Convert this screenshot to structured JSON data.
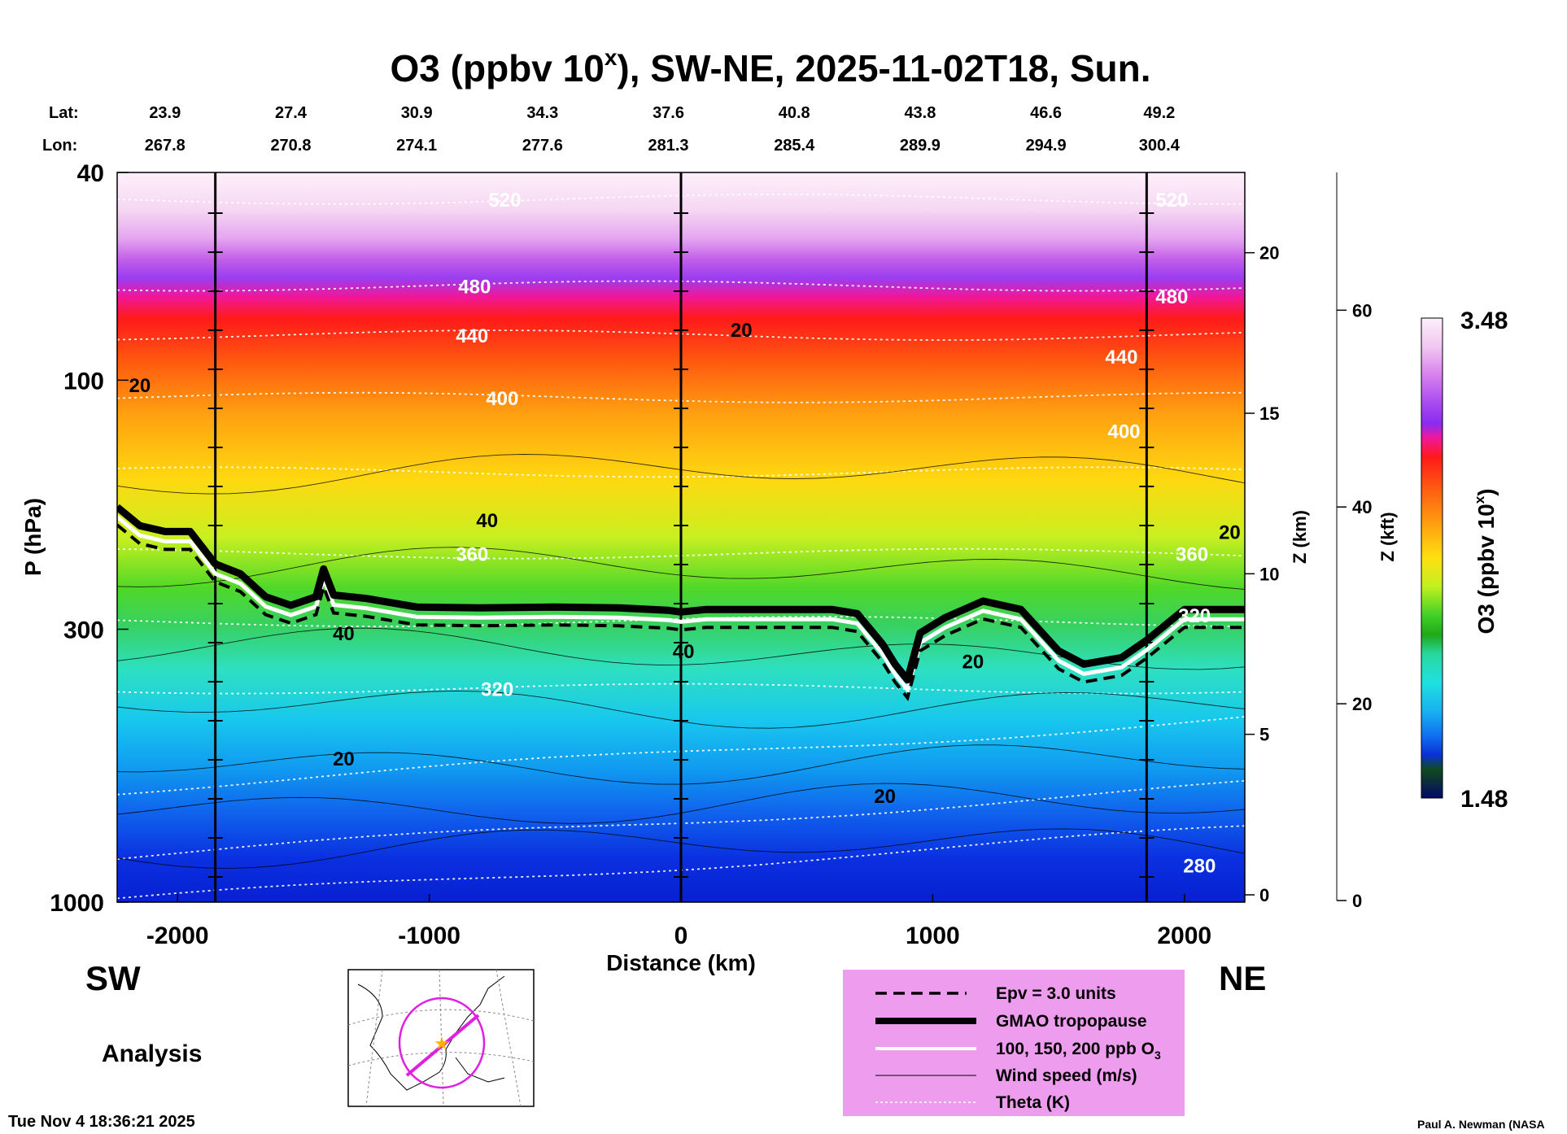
{
  "chart_data": {
    "type": "heatmap",
    "title": {
      "main": "O3 (ppbv 10",
      "sup": "x",
      "rest": "), SW-NE, 2025-11-02T18, Sun."
    },
    "lat_label": "Lat:",
    "lon_label": "Lon:",
    "positions": [
      {
        "lat": "23.9",
        "lon": "267.8",
        "km": -2050
      },
      {
        "lat": "27.4",
        "lon": "270.8",
        "km": -1550
      },
      {
        "lat": "30.9",
        "lon": "274.1",
        "km": -1050
      },
      {
        "lat": "34.3",
        "lon": "277.6",
        "km": -550
      },
      {
        "lat": "37.6",
        "lon": "281.3",
        "km": -50
      },
      {
        "lat": "40.8",
        "lon": "285.4",
        "km": 450
      },
      {
        "lat": "43.8",
        "lon": "289.9",
        "km": 950
      },
      {
        "lat": "46.6",
        "lon": "294.9",
        "km": 1450
      },
      {
        "lat": "49.2",
        "lon": "300.4",
        "km": 1900
      }
    ],
    "x_axis": {
      "label": "Distance (km)",
      "range": [
        -2240,
        2240
      ],
      "ticks": [
        -2000,
        -1000,
        0,
        1000,
        2000
      ],
      "tick_labels": [
        "-2000",
        "-1000",
        "0",
        "1000",
        "2000"
      ]
    },
    "y_axis": {
      "label": "P (hPa)",
      "range": [
        1000,
        40
      ],
      "scale": "log",
      "ticks": [
        40,
        100,
        300,
        1000
      ],
      "tick_labels": [
        "40",
        "100",
        "300",
        "1000"
      ]
    },
    "z_km_axis": {
      "label": "Z (km)",
      "range": [
        0,
        22.5
      ],
      "ticks": [
        0,
        5,
        10,
        15,
        20
      ],
      "tick_labels": [
        "0",
        "5",
        "10",
        "15",
        "20"
      ]
    },
    "z_kft_axis": {
      "label": "Z (kft)",
      "range": [
        0,
        74
      ],
      "ticks": [
        0,
        20,
        40,
        60
      ],
      "tick_labels": [
        "0",
        "20",
        "40",
        "60"
      ]
    },
    "colorbar": {
      "label_main": "O3 (ppbv 10",
      "label_sup": "x",
      "label_rest": ")",
      "max": "3.48",
      "min": "1.48"
    },
    "vertical_markers_km": [
      -1850,
      0,
      1850
    ],
    "tropopause": [
      [
        -2240,
        175
      ],
      [
        -2150,
        190
      ],
      [
        -2050,
        195
      ],
      [
        -1950,
        195
      ],
      [
        -1850,
        225
      ],
      [
        -1750,
        235
      ],
      [
        -1650,
        260
      ],
      [
        -1550,
        270
      ],
      [
        -1450,
        260
      ],
      [
        -1420,
        230
      ],
      [
        -1380,
        258
      ],
      [
        -1250,
        262
      ],
      [
        -1050,
        272
      ],
      [
        -800,
        273
      ],
      [
        -500,
        272
      ],
      [
        -250,
        273
      ],
      [
        -50,
        276
      ],
      [
        0,
        278
      ],
      [
        100,
        275
      ],
      [
        300,
        275
      ],
      [
        600,
        275
      ],
      [
        700,
        280
      ],
      [
        800,
        320
      ],
      [
        850,
        350
      ],
      [
        900,
        375
      ],
      [
        950,
        305
      ],
      [
        1050,
        285
      ],
      [
        1200,
        265
      ],
      [
        1350,
        275
      ],
      [
        1500,
        330
      ],
      [
        1600,
        350
      ],
      [
        1750,
        340
      ],
      [
        1850,
        315
      ],
      [
        2000,
        275
      ],
      [
        2240,
        275
      ]
    ],
    "theta_labels": [
      {
        "value": "520",
        "km": -700,
        "p": 45
      },
      {
        "value": "480",
        "km": -820,
        "p": 66
      },
      {
        "value": "440",
        "km": -830,
        "p": 82
      },
      {
        "value": "400",
        "km": -710,
        "p": 108
      },
      {
        "value": "360",
        "km": -830,
        "p": 215
      },
      {
        "value": "320",
        "km": -730,
        "p": 390
      },
      {
        "value": "520",
        "km": 1950,
        "p": 45
      },
      {
        "value": "480",
        "km": 1950,
        "p": 69
      },
      {
        "value": "440",
        "km": 1750,
        "p": 90
      },
      {
        "value": "400",
        "km": 1760,
        "p": 125
      },
      {
        "value": "360",
        "km": 2030,
        "p": 215
      },
      {
        "value": "320",
        "km": 2040,
        "p": 282
      },
      {
        "value": "280",
        "km": 2060,
        "p": 850
      }
    ],
    "wind_labels": [
      {
        "value": "20",
        "km": -2150,
        "p": 102
      },
      {
        "value": "20",
        "km": 240,
        "p": 80
      },
      {
        "value": "40",
        "km": -770,
        "p": 185
      },
      {
        "value": "40",
        "km": -1340,
        "p": 305
      },
      {
        "value": "20",
        "km": -1340,
        "p": 530
      },
      {
        "value": "20",
        "km": 810,
        "p": 625
      },
      {
        "value": "20",
        "km": 1160,
        "p": 345
      },
      {
        "value": "20",
        "km": 2180,
        "p": 195
      },
      {
        "value": "40",
        "km": 10,
        "p": 330
      }
    ],
    "legend": {
      "items": [
        {
          "style": "dashed",
          "label": "Epv = 3.0 units"
        },
        {
          "style": "thick",
          "label": "GMAO tropopause"
        },
        {
          "style": "white",
          "label": "100, 150, 200 ppb O",
          "sub": "3"
        },
        {
          "style": "thin",
          "label": "Wind speed (m/s)"
        },
        {
          "style": "dotted",
          "label": "Theta (K)"
        }
      ],
      "background": "#ee9cee"
    },
    "sw_label": "SW",
    "ne_label": "NE",
    "analysis_label": "Analysis",
    "timestamp": "Tue Nov  4 18:36:21 2025",
    "credit": "Paul A. Newman (NASA"
  }
}
